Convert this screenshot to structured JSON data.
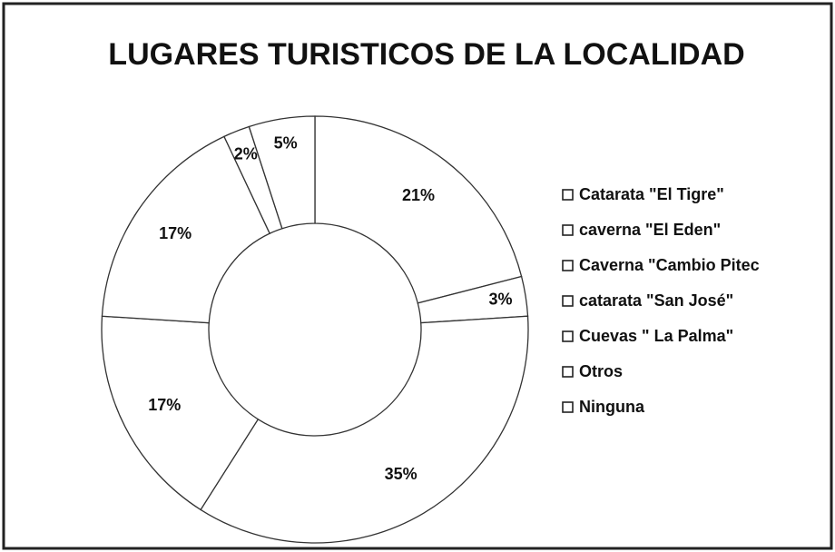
{
  "chart_data": {
    "type": "donut",
    "title": "LUGARES TURISTICOS DE LA LOCALIDAD",
    "categories": [
      "Catarata \"El Tigre\"",
      "caverna \"El Eden\"",
      "Caverna \"Cambio Pitec",
      "catarata \"San José\"",
      "Cuevas \" La Palma\"",
      "Otros",
      "Ninguna"
    ],
    "values": [
      21,
      3,
      35,
      17,
      17,
      2,
      5
    ],
    "value_labels": [
      "21%",
      "3%",
      "35%",
      "17%",
      "17%",
      "2%",
      "5%"
    ],
    "color": "#ffffff",
    "legend": "right"
  }
}
